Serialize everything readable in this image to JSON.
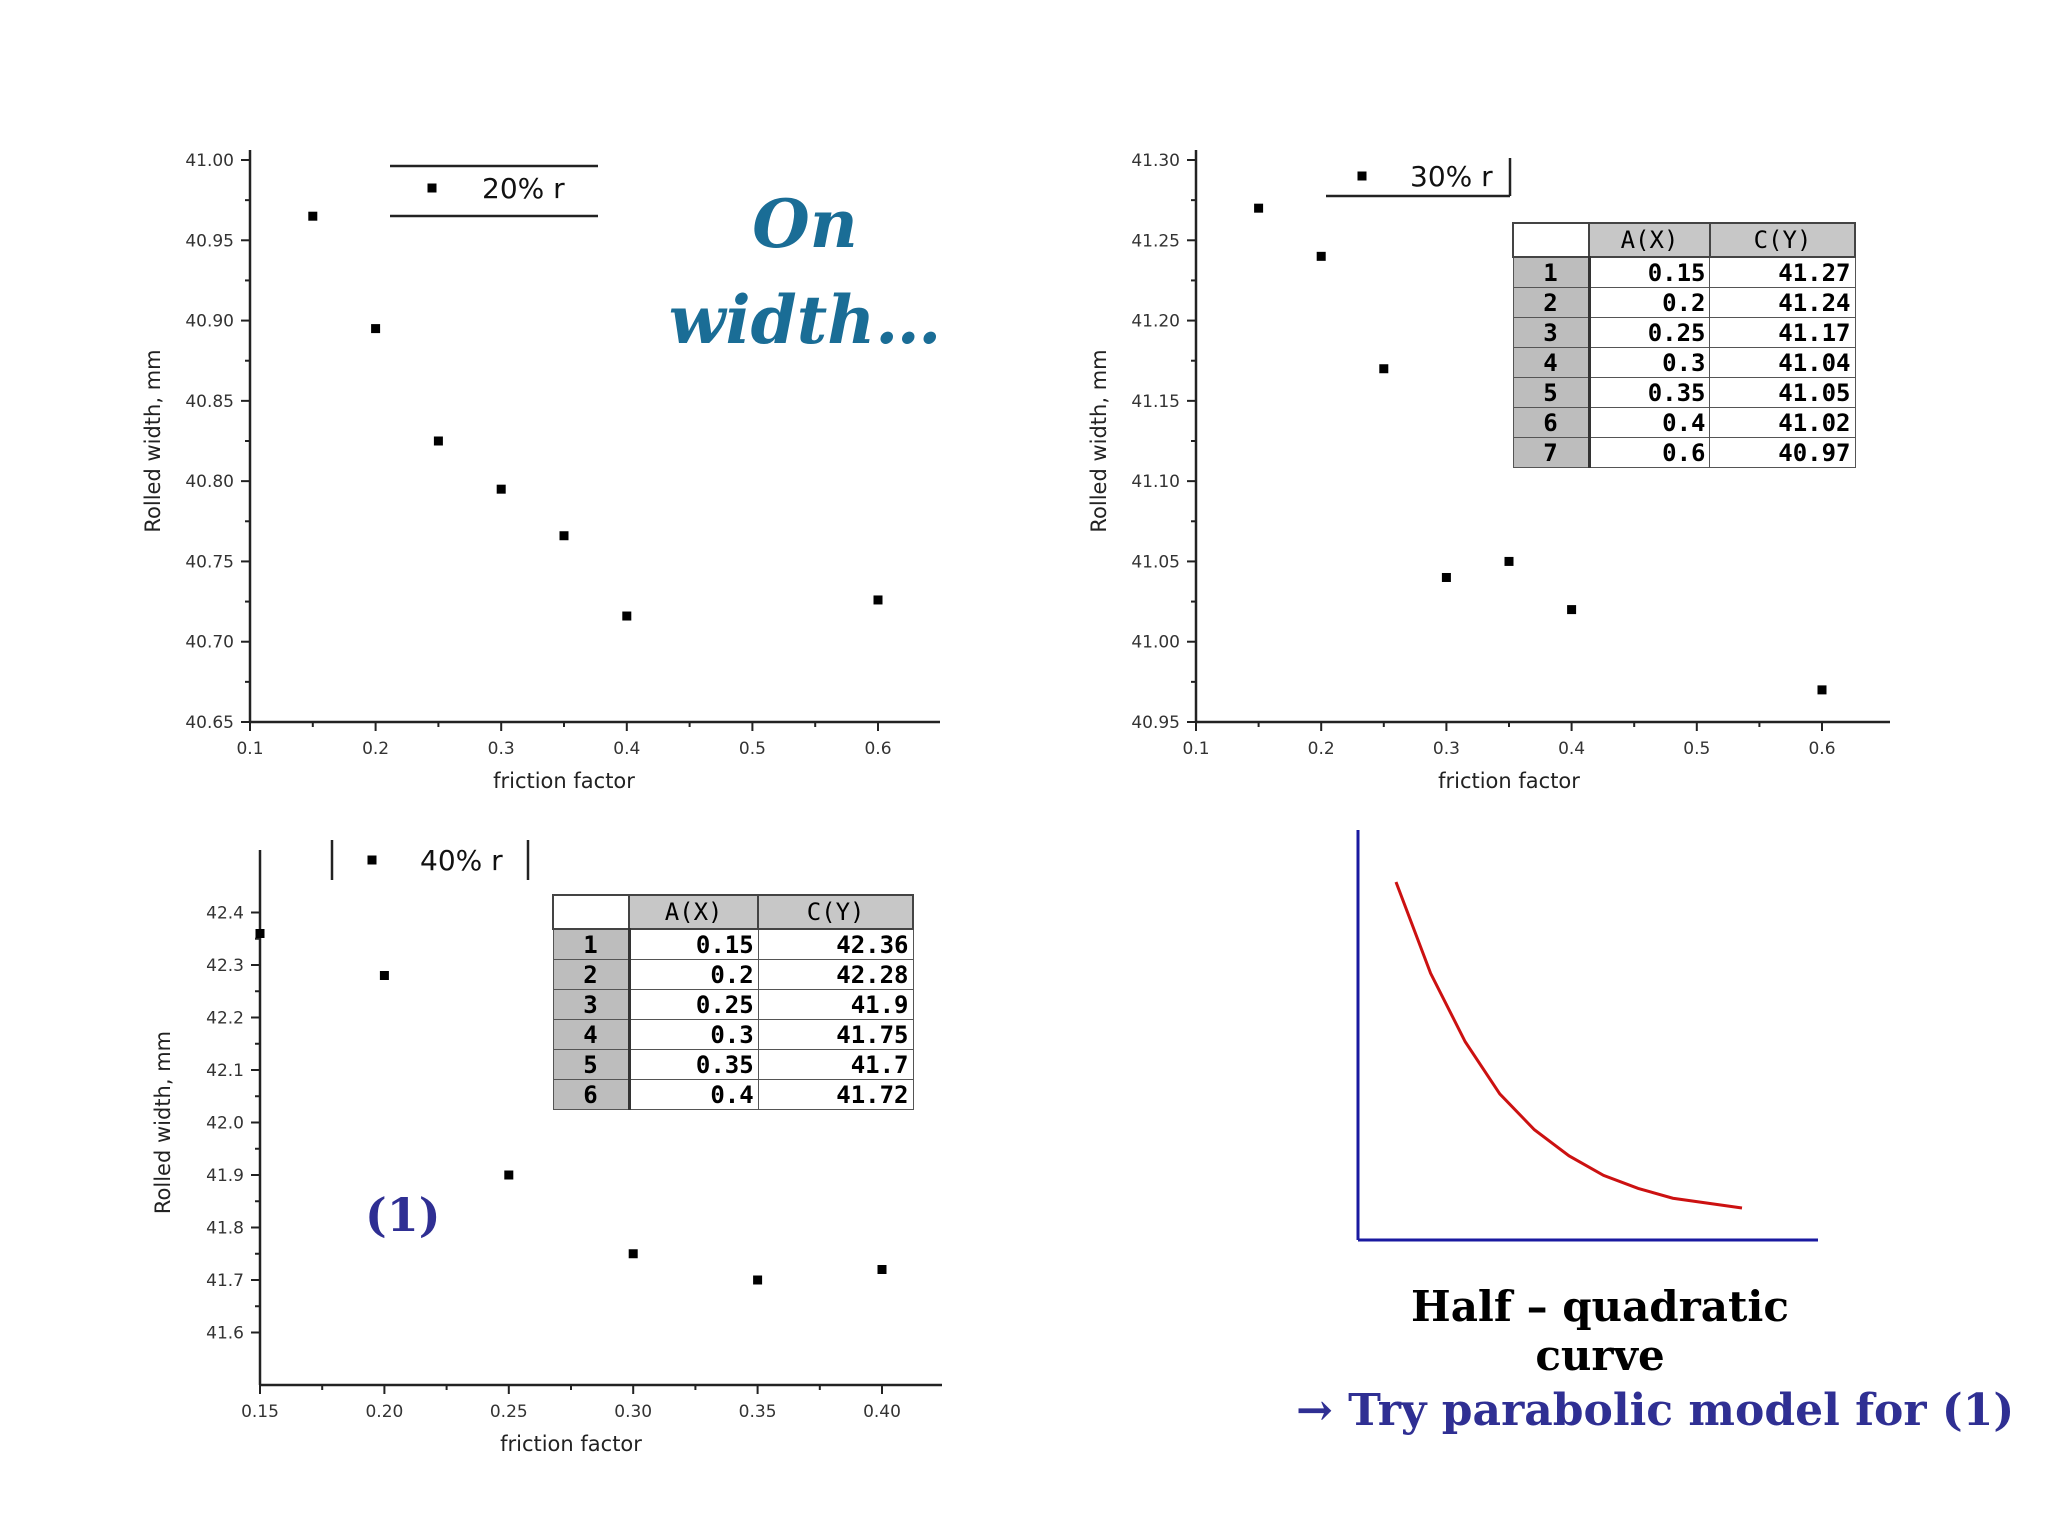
{
  "chart_data": [
    {
      "type": "scatter",
      "title": "",
      "xlabel": "friction factor",
      "ylabel": "Rolled width, mm",
      "xlim": [
        0.1,
        0.6
      ],
      "ylim": [
        40.65,
        41.0
      ],
      "x_ticks": [
        "0.1",
        "0.2",
        "0.3",
        "0.4",
        "0.5",
        "0.6"
      ],
      "y_ticks": [
        "41.00",
        "40.95",
        "40.90",
        "40.85",
        "40.80",
        "40.75",
        "40.70",
        "40.65"
      ],
      "series": [
        {
          "name": "20% r",
          "x": [
            0.15,
            0.2,
            0.25,
            0.3,
            0.35,
            0.4,
            0.6
          ],
          "y": [
            40.965,
            40.895,
            40.825,
            40.795,
            40.766,
            40.716,
            40.726
          ]
        }
      ]
    },
    {
      "type": "scatter",
      "title": "",
      "xlabel": "friction factor",
      "ylabel": "Rolled width, mm",
      "xlim": [
        0.1,
        0.6
      ],
      "ylim": [
        40.95,
        41.3
      ],
      "x_ticks": [
        "0.1",
        "0.2",
        "0.3",
        "0.4",
        "0.5",
        "0.6"
      ],
      "y_ticks": [
        "41.30",
        "41.25",
        "41.20",
        "41.15",
        "41.10",
        "41.05",
        "41.00",
        "40.95"
      ],
      "series": [
        {
          "name": "30% r",
          "x": [
            0.15,
            0.2,
            0.25,
            0.3,
            0.35,
            0.4,
            0.6
          ],
          "y": [
            41.27,
            41.24,
            41.17,
            41.04,
            41.05,
            41.02,
            40.97
          ]
        }
      ],
      "table": {
        "columns": [
          "",
          "A(X)",
          "C(Y)"
        ],
        "rows": [
          [
            "1",
            "0.15",
            "41.27"
          ],
          [
            "2",
            "0.2",
            "41.24"
          ],
          [
            "3",
            "0.25",
            "41.17"
          ],
          [
            "4",
            "0.3",
            "41.04"
          ],
          [
            "5",
            "0.35",
            "41.05"
          ],
          [
            "6",
            "0.4",
            "41.02"
          ],
          [
            "7",
            "0.6",
            "40.97"
          ]
        ]
      }
    },
    {
      "type": "scatter",
      "title": "",
      "xlabel": "friction factor",
      "ylabel": "Rolled width, mm",
      "xlim": [
        0.15,
        0.4
      ],
      "ylim": [
        41.5,
        42.5
      ],
      "x_ticks": [
        "0.15",
        "0.20",
        "0.25",
        "0.30",
        "0.35",
        "0.40"
      ],
      "y_ticks": [
        "42.4",
        "42.3",
        "42.2",
        "42.1",
        "42.0",
        "41.9",
        "41.8",
        "41.7",
        "41.6"
      ],
      "series": [
        {
          "name": "40% r",
          "x": [
            0.15,
            0.2,
            0.25,
            0.3,
            0.35,
            0.4
          ],
          "y": [
            42.36,
            42.28,
            41.9,
            41.75,
            41.7,
            41.72
          ]
        }
      ],
      "table": {
        "columns": [
          "",
          "A(X)",
          "C(Y)"
        ],
        "rows": [
          [
            "1",
            "0.15",
            "42.36"
          ],
          [
            "2",
            "0.2",
            "42.28"
          ],
          [
            "3",
            "0.25",
            "41.9"
          ],
          [
            "4",
            "0.3",
            "41.75"
          ],
          [
            "5",
            "0.35",
            "41.7"
          ],
          [
            "6",
            "0.4",
            "41.72"
          ]
        ]
      }
    },
    {
      "type": "line",
      "title": "",
      "xlabel": "",
      "ylabel": "",
      "series": [
        {
          "x": [
            0.0,
            0.1,
            0.2,
            0.3,
            0.4,
            0.5,
            0.6,
            0.7,
            0.8,
            1.0
          ],
          "y": [
            1.0,
            0.72,
            0.51,
            0.35,
            0.24,
            0.16,
            0.1,
            0.06,
            0.03,
            0.0
          ]
        }
      ],
      "color": "#cc1111",
      "axis_color": "#1a1aa0"
    }
  ],
  "annotations": {
    "on_width": "On width…",
    "equation_label": "(1)",
    "curve_caption": "Half – quadratic curve",
    "suggestion": "→ Try parabolic model for (1)"
  }
}
